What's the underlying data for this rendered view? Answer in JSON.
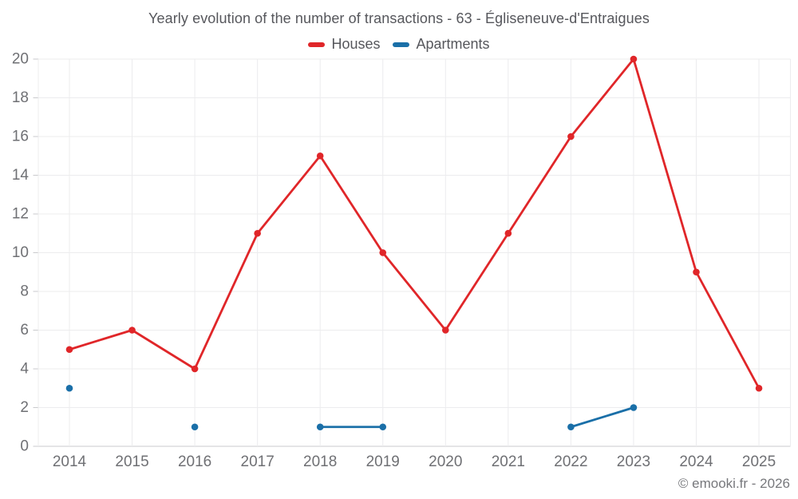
{
  "header": {
    "title": "Yearly evolution of the number of transactions - 63 - Égliseneuve-d'Entraigues"
  },
  "legend": [
    {
      "label": "Houses",
      "color": "#e02629"
    },
    {
      "label": "Apartments",
      "color": "#1a6fa8"
    }
  ],
  "footer": {
    "credit": "© emooki.fr - 2026"
  },
  "colors": {
    "houses": "#e02629",
    "apartments": "#1a6fa8",
    "gridline": "#ececee",
    "axis_line": "#c9cacc",
    "tick_label": "#6f7074",
    "title_text": "#56575c",
    "credit_text": "#77787c"
  },
  "chart_data": {
    "type": "line",
    "title": "Yearly evolution of the number of transactions - 63 - Égliseneuve-d'Entraigues",
    "categories": [
      "2014",
      "2015",
      "2016",
      "2017",
      "2018",
      "2019",
      "2020",
      "2021",
      "2022",
      "2023",
      "2024",
      "2025"
    ],
    "series": [
      {
        "name": "Houses",
        "color": "#e02629",
        "values": [
          5,
          6,
          4,
          11,
          15,
          10,
          6,
          11,
          16,
          20,
          9,
          3
        ]
      },
      {
        "name": "Apartments",
        "color": "#1a6fa8",
        "values": [
          3,
          null,
          1,
          null,
          1,
          1,
          null,
          null,
          1,
          2,
          null,
          null
        ]
      }
    ],
    "xlabel": "",
    "ylabel": "",
    "ylim": [
      0,
      20
    ],
    "ytick_step": 2,
    "grid": true,
    "legend_position": "top"
  }
}
